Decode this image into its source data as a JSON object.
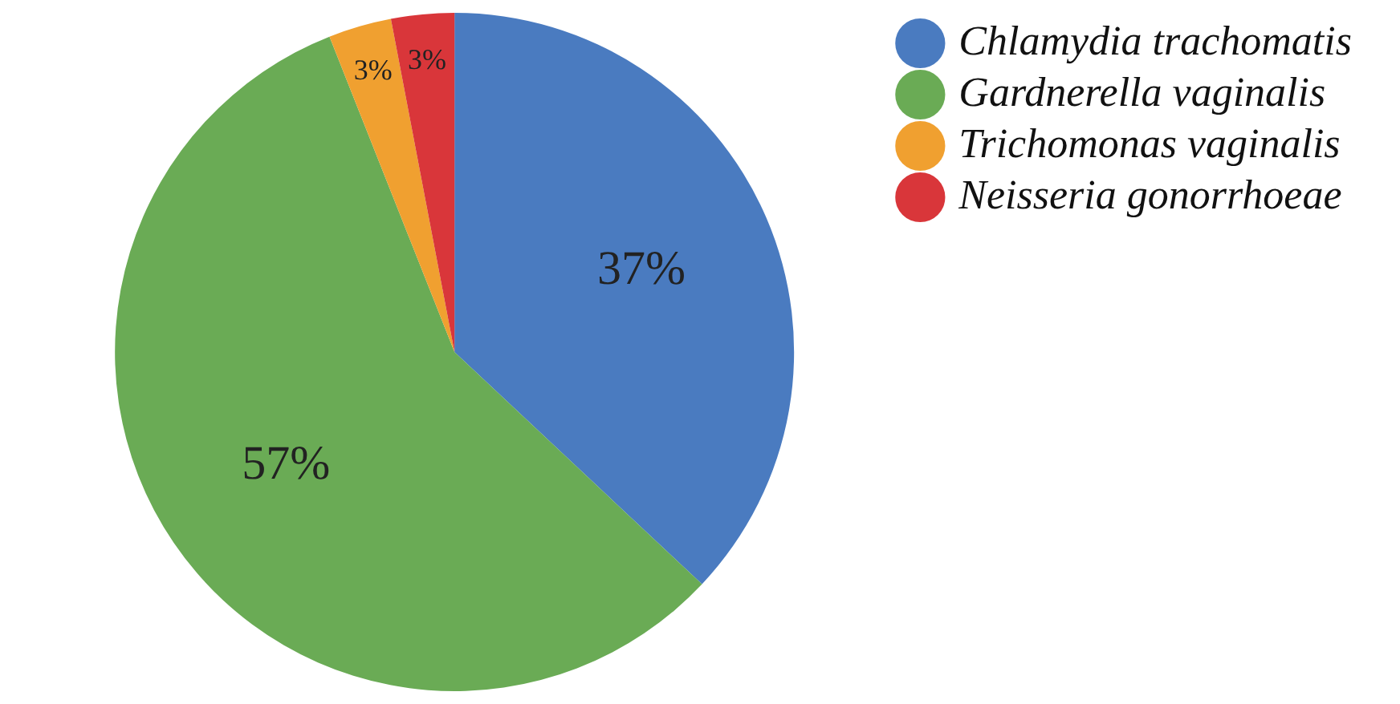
{
  "chart_data": {
    "type": "pie",
    "categories": [
      "Chlamydia trachomatis",
      "Gardnerella vaginalis",
      "Trichomonas vaginalis",
      "Neisseria gonorrhoeae"
    ],
    "values": [
      37,
      57,
      3,
      3
    ],
    "colors": [
      "#4a7bc0",
      "#6aab55",
      "#f0a030",
      "#d9363a"
    ],
    "value_labels": [
      "37%",
      "57%",
      "3%",
      "3%"
    ],
    "legend": "top right"
  }
}
